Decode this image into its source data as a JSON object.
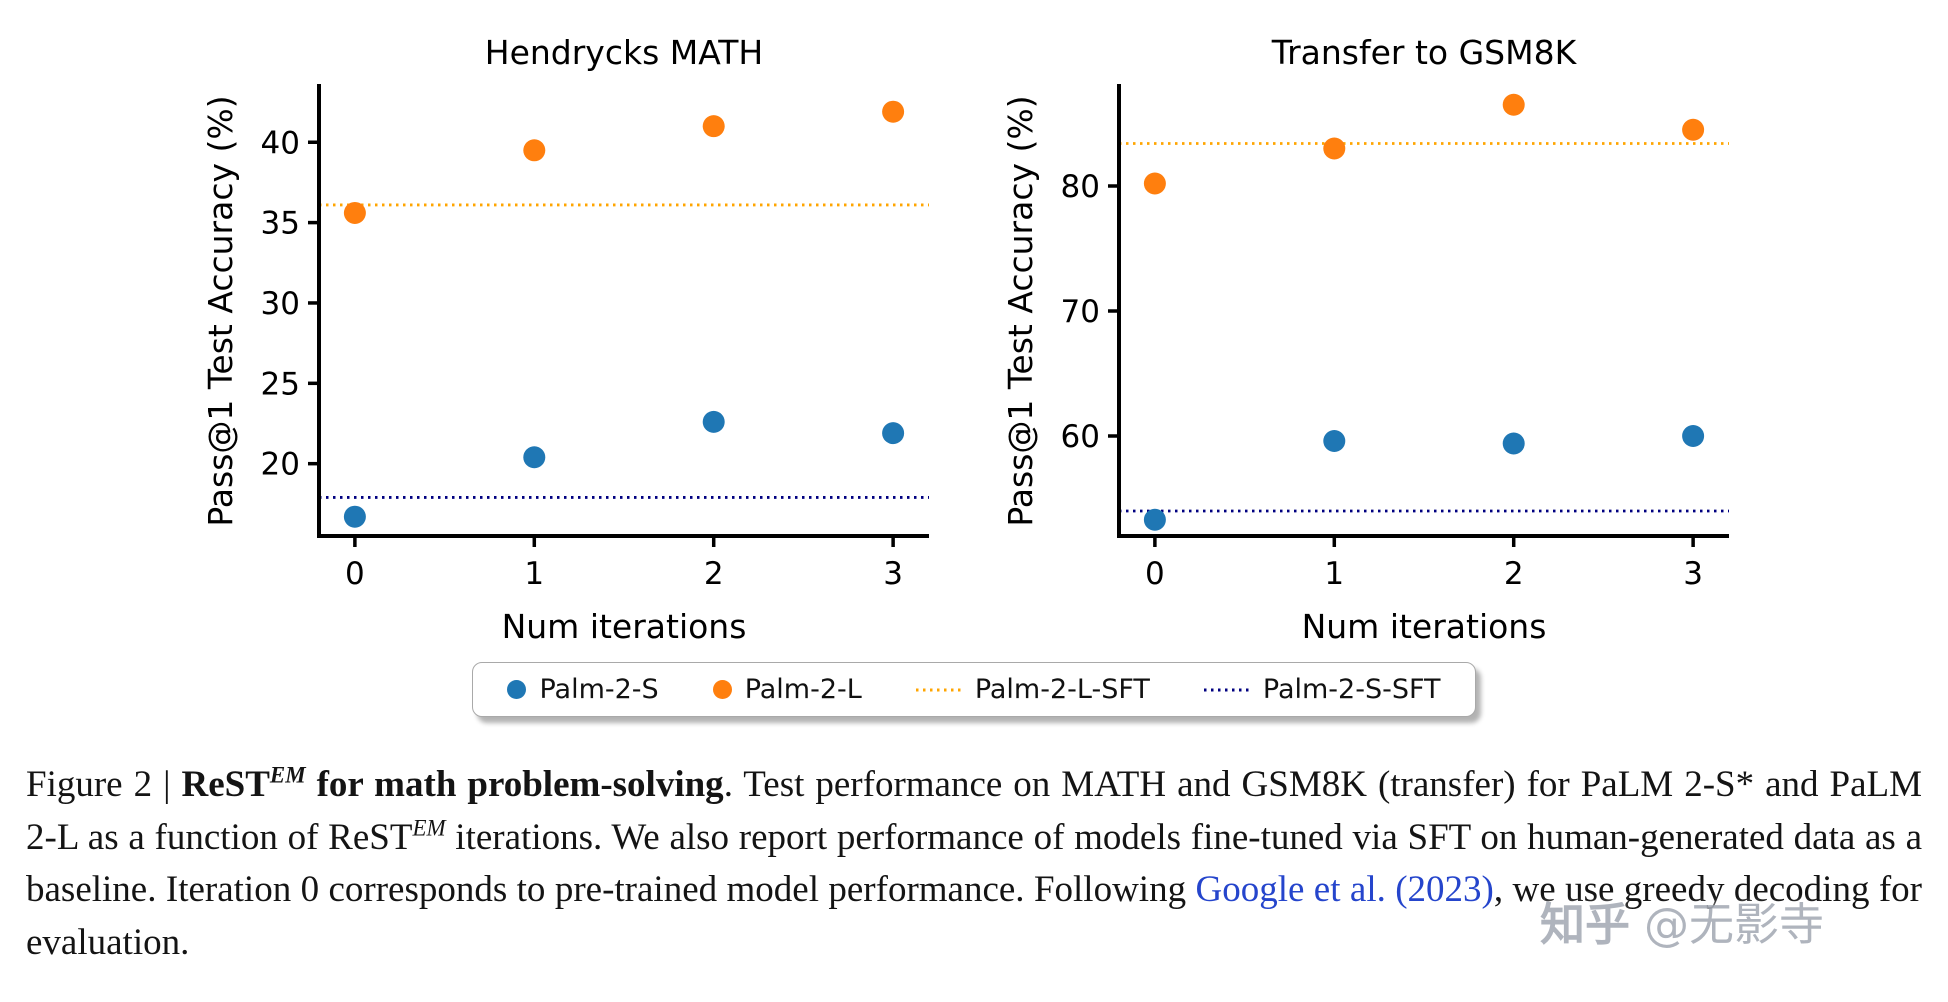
{
  "figure": {
    "number_label": "Figure 2 |"
  },
  "chart_data": [
    {
      "type": "scatter",
      "title": "Hendrycks MATH",
      "xlabel": "Num iterations",
      "ylabel": "Pass@1 Test Accuracy (%)",
      "x": [
        0,
        1,
        2,
        3
      ],
      "xticks": [
        0,
        1,
        2,
        3
      ],
      "yticks": [
        20,
        25,
        30,
        35,
        40
      ],
      "xlim": [
        -0.2,
        3.2
      ],
      "ylim": [
        15.5,
        43.5
      ],
      "grid": false,
      "series": [
        {
          "name": "Palm-2-S",
          "color": "#1f77b4",
          "values": [
            16.7,
            20.4,
            22.6,
            21.9
          ]
        },
        {
          "name": "Palm-2-L",
          "color": "#ff7f0e",
          "values": [
            35.6,
            39.5,
            41.0,
            41.9
          ]
        }
      ],
      "hlines": [
        {
          "name": "Palm-2-L-SFT",
          "color": "#ffa500",
          "y": 36.1
        },
        {
          "name": "Palm-2-S-SFT",
          "color": "#000080",
          "y": 17.9
        }
      ]
    },
    {
      "type": "scatter",
      "title": "Transfer to GSM8K",
      "xlabel": "Num iterations",
      "ylabel": "Pass@1 Test Accuracy (%)",
      "x": [
        0,
        1,
        2,
        3
      ],
      "xticks": [
        0,
        1,
        2,
        3
      ],
      "yticks": [
        60,
        70,
        80
      ],
      "xlim": [
        -0.2,
        3.2
      ],
      "ylim": [
        52,
        88
      ],
      "grid": false,
      "series": [
        {
          "name": "Palm-2-S",
          "color": "#1f77b4",
          "values": [
            53.3,
            59.6,
            59.4,
            60.0
          ]
        },
        {
          "name": "Palm-2-L",
          "color": "#ff7f0e",
          "values": [
            80.2,
            83.0,
            86.5,
            84.5
          ]
        }
      ],
      "hlines": [
        {
          "name": "Palm-2-L-SFT",
          "color": "#ffa500",
          "y": 83.4
        },
        {
          "name": "Palm-2-S-SFT",
          "color": "#000080",
          "y": 54.0
        }
      ]
    }
  ],
  "legend": {
    "position": "bottom-center",
    "items": [
      {
        "label": "Palm-2-S",
        "marker": "dot",
        "color": "#1f77b4"
      },
      {
        "label": "Palm-2-L",
        "marker": "dot",
        "color": "#ff7f0e"
      },
      {
        "label": "Palm-2-L-SFT",
        "marker": "dotted-line",
        "color": "#ffa500"
      },
      {
        "label": "Palm-2-S-SFT",
        "marker": "dotted-line",
        "color": "#000080"
      }
    ]
  },
  "caption": {
    "segments": [
      {
        "text": "Figure 2 | ",
        "style": "normal"
      },
      {
        "text": "ReST",
        "style": "bold"
      },
      {
        "text": "EM",
        "style": "bold-sup"
      },
      {
        "text": " for math problem-solving",
        "style": "bold"
      },
      {
        "text": ". Test performance on MATH and GSM8K (transfer) for PaLM 2-S* and PaLM 2-L as a function of ReST",
        "style": "normal"
      },
      {
        "text": "EM",
        "style": "sup"
      },
      {
        "text": " iterations. We also report performance of models fine-tuned via SFT on human-generated data as a baseline. Iteration 0 corresponds to pre-trained model performance. Following ",
        "style": "normal"
      },
      {
        "text": "Google et al.",
        "style": "link"
      },
      {
        "text": " ",
        "style": "normal"
      },
      {
        "text": "(2023)",
        "style": "link"
      },
      {
        "text": ", we use greedy decoding for evaluation.",
        "style": "normal"
      }
    ]
  },
  "watermark": {
    "logo": "知乎",
    "handle": "@无影寺"
  },
  "colors": {
    "palm_2_s": "#1f77b4",
    "palm_2_l": "#ff7f0e",
    "palm_2_l_sft": "#ffa500",
    "palm_2_s_sft": "#000080",
    "link_blue": "#2545cc",
    "axis": "#000000",
    "background": "#ffffff"
  }
}
